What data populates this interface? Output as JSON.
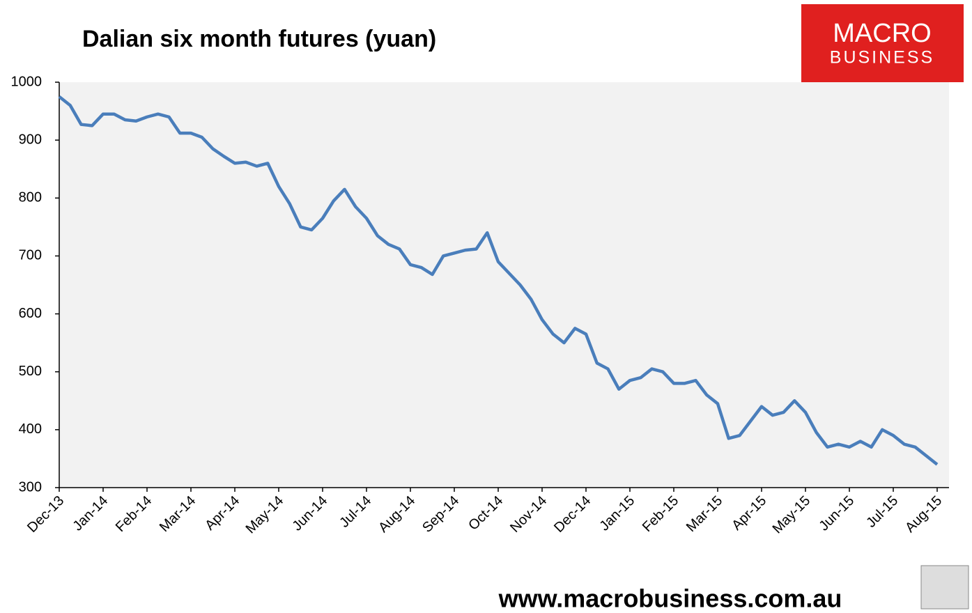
{
  "chart_data": {
    "type": "line",
    "title": "Dalian six month futures (yuan)",
    "categories": [
      "Dec-13",
      null,
      null,
      null,
      "Jan-14",
      null,
      null,
      null,
      "Feb-14",
      null,
      null,
      null,
      "Mar-14",
      null,
      null,
      null,
      "Apr-14",
      null,
      null,
      null,
      "May-14",
      null,
      null,
      null,
      "Jun-14",
      null,
      null,
      null,
      "Jul-14",
      null,
      null,
      null,
      "Aug-14",
      null,
      null,
      null,
      "Sep-14",
      null,
      null,
      null,
      "Oct-14",
      null,
      null,
      null,
      "Nov-14",
      null,
      null,
      null,
      "Dec-14",
      null,
      null,
      null,
      "Jan-15",
      null,
      null,
      null,
      "Feb-15",
      null,
      null,
      null,
      "Mar-15",
      null,
      null,
      null,
      "Apr-15",
      null,
      null,
      null,
      "May-15",
      null,
      null,
      null,
      "Jun-15",
      null,
      null,
      null,
      "Jul-15",
      null,
      null,
      null,
      "Aug-15"
    ],
    "series": [
      {
        "name": "Dalian six month futures",
        "color": "#4a7ebb",
        "values": [
          975,
          960,
          927,
          925,
          945,
          945,
          935,
          933,
          940,
          945,
          940,
          912,
          912,
          905,
          885,
          872,
          860,
          862,
          855,
          860,
          820,
          790,
          750,
          745,
          765,
          795,
          815,
          785,
          765,
          735,
          720,
          712,
          685,
          680,
          668,
          700,
          705,
          710,
          712,
          740,
          690,
          670,
          650,
          625,
          590,
          565,
          550,
          575,
          565,
          515,
          505,
          470,
          485,
          490,
          505,
          500,
          480,
          480,
          485,
          460,
          445,
          385,
          390,
          415,
          440,
          425,
          430,
          450,
          430,
          395,
          370,
          375,
          370,
          380,
          370,
          400,
          390,
          375,
          370,
          355,
          340
        ]
      }
    ],
    "ylim": [
      300,
      1000
    ],
    "yticks": [
      300,
      400,
      500,
      600,
      700,
      800,
      900,
      1000
    ],
    "grid": false
  },
  "logo": {
    "line1": "MACRO",
    "line2": "BUSINESS"
  },
  "footer_url": "www.macrobusiness.com.au"
}
